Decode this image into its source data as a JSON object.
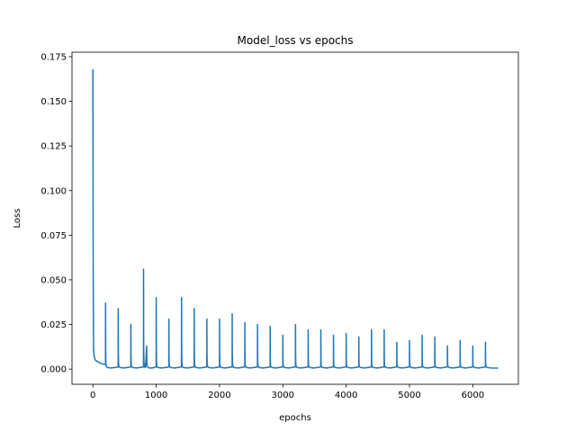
{
  "chart_data": {
    "type": "line",
    "title": "Model_loss vs epochs",
    "xlabel": "epochs",
    "ylabel": "Loss",
    "xlim": [
      -330,
      6720
    ],
    "ylim": [
      -0.0085,
      0.1775
    ],
    "xticks": [
      0,
      1000,
      2000,
      3000,
      4000,
      5000,
      6000
    ],
    "yticks": [
      0.0,
      0.025,
      0.05,
      0.075,
      0.1,
      0.125,
      0.15,
      0.175
    ],
    "xtick_labels": [
      "0",
      "1000",
      "2000",
      "3000",
      "4000",
      "5000",
      "6000"
    ],
    "ytick_labels": [
      "0.000",
      "0.025",
      "0.050",
      "0.075",
      "0.100",
      "0.125",
      "0.150",
      "0.175"
    ],
    "grid": false,
    "series": [
      {
        "color": "#1f77b4",
        "x_range": [
          0,
          6400
        ],
        "floor": 0.0006,
        "initial_decay": [
          {
            "x": 0,
            "y": 0.168
          },
          {
            "x": 5,
            "y": 0.05
          },
          {
            "x": 10,
            "y": 0.012
          },
          {
            "x": 20,
            "y": 0.007
          },
          {
            "x": 40,
            "y": 0.005
          },
          {
            "x": 80,
            "y": 0.004
          },
          {
            "x": 140,
            "y": 0.003
          },
          {
            "x": 199,
            "y": 0.0025
          }
        ],
        "spikes": [
          {
            "x": 200,
            "y": 0.037
          },
          {
            "x": 400,
            "y": 0.034
          },
          {
            "x": 600,
            "y": 0.025
          },
          {
            "x": 800,
            "y": 0.056
          },
          {
            "x": 850,
            "y": 0.013
          },
          {
            "x": 1000,
            "y": 0.04
          },
          {
            "x": 1200,
            "y": 0.028
          },
          {
            "x": 1400,
            "y": 0.04
          },
          {
            "x": 1600,
            "y": 0.034
          },
          {
            "x": 1800,
            "y": 0.028
          },
          {
            "x": 2000,
            "y": 0.028
          },
          {
            "x": 2200,
            "y": 0.031
          },
          {
            "x": 2400,
            "y": 0.026
          },
          {
            "x": 2600,
            "y": 0.025
          },
          {
            "x": 2800,
            "y": 0.024
          },
          {
            "x": 3000,
            "y": 0.019
          },
          {
            "x": 3200,
            "y": 0.025
          },
          {
            "x": 3400,
            "y": 0.022
          },
          {
            "x": 3600,
            "y": 0.022
          },
          {
            "x": 3800,
            "y": 0.019
          },
          {
            "x": 4000,
            "y": 0.02
          },
          {
            "x": 4200,
            "y": 0.018
          },
          {
            "x": 4400,
            "y": 0.022
          },
          {
            "x": 4600,
            "y": 0.022
          },
          {
            "x": 4800,
            "y": 0.015
          },
          {
            "x": 5000,
            "y": 0.016
          },
          {
            "x": 5200,
            "y": 0.019
          },
          {
            "x": 5400,
            "y": 0.018
          },
          {
            "x": 5600,
            "y": 0.013
          },
          {
            "x": 5800,
            "y": 0.016
          },
          {
            "x": 6000,
            "y": 0.013
          },
          {
            "x": 6200,
            "y": 0.015
          }
        ]
      }
    ]
  }
}
